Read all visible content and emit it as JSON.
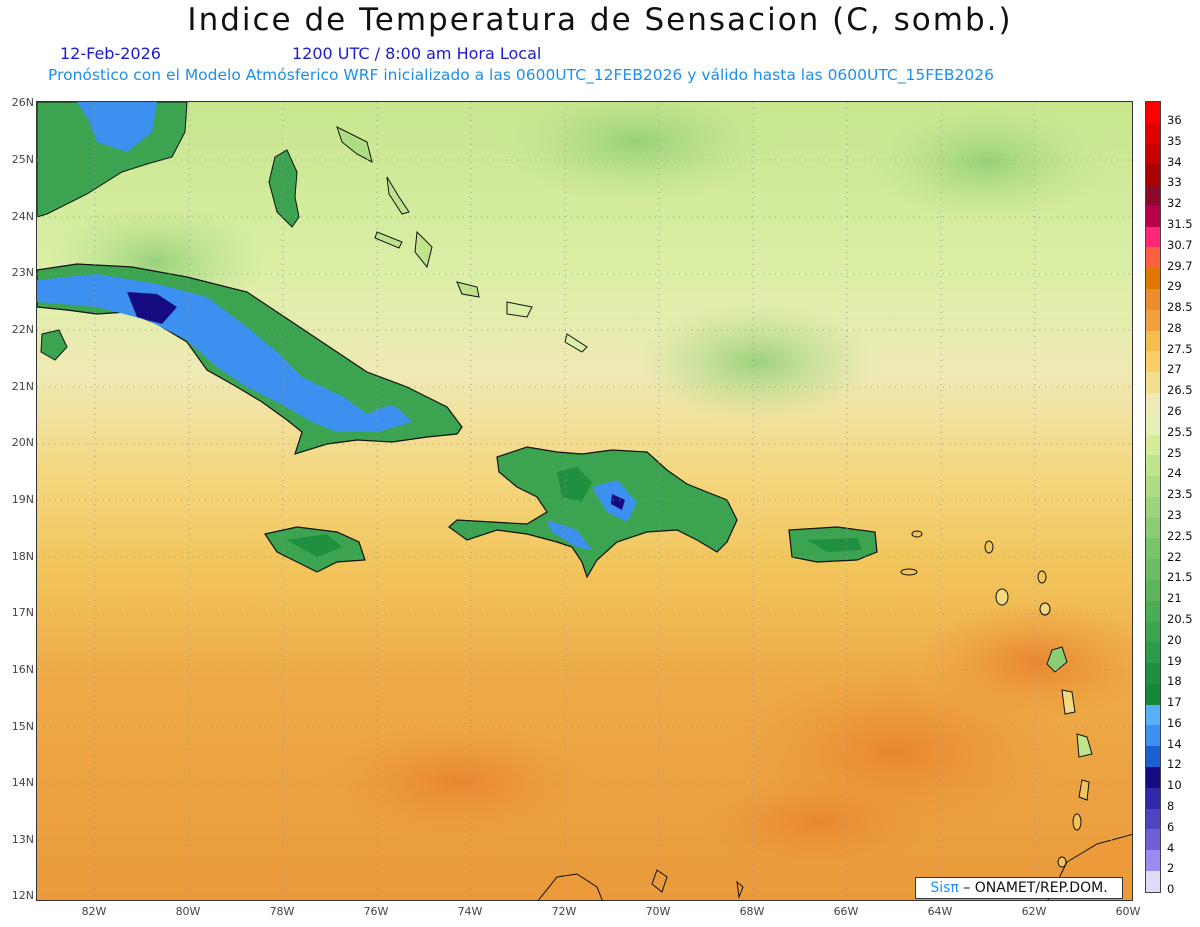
{
  "header": {
    "title": "Indice de Temperatura de Sensacion (C, somb.)",
    "date": "12-Feb-2026",
    "time": "1200 UTC / 8:00 am Hora Local",
    "model_info": "Pronóstico con el Modelo Atmósferico WRF inicializado a las 0600UTC_12FEB2026 y válido hasta las  0600UTC_15FEB2026"
  },
  "axes": {
    "lat_labels": [
      "26N",
      "25N",
      "24N",
      "23N",
      "22N",
      "21N",
      "20N",
      "19N",
      "18N",
      "17N",
      "16N",
      "15N",
      "14N",
      "13N",
      "12N"
    ],
    "lon_labels": [
      "82W",
      "80W",
      "78W",
      "76W",
      "74W",
      "72W",
      "70W",
      "68W",
      "66W",
      "64W",
      "62W",
      "60W"
    ]
  },
  "legend": {
    "labels": [
      "36",
      "35",
      "34",
      "33",
      "32",
      "31.5",
      "30.7",
      "29.7",
      "29",
      "28.5",
      "28",
      "27.5",
      "27",
      "26.5",
      "26",
      "25.5",
      "25",
      "24",
      "23.5",
      "23",
      "22.5",
      "22",
      "21.5",
      "21",
      "20.5",
      "20",
      "19",
      "18",
      "17",
      "16",
      "14",
      "12",
      "10",
      "8",
      "6",
      "4",
      "2",
      "0"
    ],
    "colors": [
      "#ff0000",
      "#e00000",
      "#c80000",
      "#a80000",
      "#8c0a28",
      "#b8004a",
      "#ff2878",
      "#ff6040",
      "#e07800",
      "#ec8c2c",
      "#f0a040",
      "#f5bc4e",
      "#f7cf66",
      "#f3de90",
      "#f0eab8",
      "#e4f0b4",
      "#d4ec9c",
      "#c0e48c",
      "#aedc84",
      "#9ed47c",
      "#8ccc74",
      "#7cc46c",
      "#6cbc64",
      "#5cb45c",
      "#4cac56",
      "#3ca450",
      "#2c9c48",
      "#1e9040",
      "#148838",
      "#58b0f8",
      "#3c90f0",
      "#1c60d0",
      "#140c80",
      "#3028a8",
      "#4c44c0",
      "#7060d8",
      "#9c8cf0",
      "#dcdcf8"
    ]
  },
  "credit": {
    "sis": "Sisπ",
    "rest": "– ONAMET/REP.DOM."
  }
}
